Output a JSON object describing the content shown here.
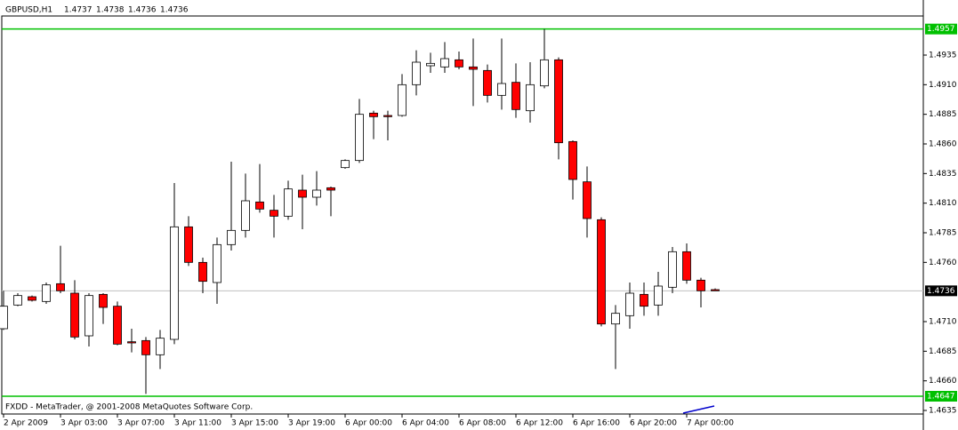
{
  "chart_data": {
    "type": "candlestick",
    "symbol": "GBPUSD,H1",
    "footer": "FXDD - MetaTrader, @ 2001-2008 MetaQuotes Software Corp.",
    "categories": [
      "2 Apr 2009",
      null,
      null,
      null,
      "3 Apr 03:00",
      null,
      null,
      null,
      "3 Apr 07:00",
      null,
      null,
      null,
      "3 Apr 11:00",
      null,
      null,
      null,
      "3 Apr 15:00",
      null,
      null,
      null,
      "3 Apr 19:00",
      null,
      null,
      null,
      "6 Apr 00:00",
      null,
      null,
      null,
      "6 Apr 04:00",
      null,
      null,
      null,
      "6 Apr 08:00",
      null,
      null,
      null,
      "6 Apr 12:00",
      null,
      null,
      null,
      "6 Apr 16:00",
      null,
      null,
      null,
      "6 Apr 20:00",
      null,
      null,
      null,
      "7 Apr 00:00",
      null,
      null
    ],
    "open": [
      1.4704,
      1.4724,
      1.4731,
      1.4727,
      1.4742,
      1.4734,
      1.4698,
      1.4733,
      1.4723,
      1.4693,
      1.4694,
      1.4682,
      1.4695,
      1.479,
      1.476,
      1.4743,
      1.4775,
      1.4787,
      1.4811,
      1.4804,
      1.4799,
      1.4821,
      1.4815,
      1.4823,
      1.484,
      1.4846,
      1.4886,
      1.4884,
      1.4884,
      1.491,
      1.4926,
      1.4925,
      1.4931,
      1.4925,
      1.4922,
      1.4901,
      1.4912,
      1.4888,
      1.4909,
      1.4931,
      1.4862,
      1.4828,
      1.4796,
      1.4708,
      1.4715,
      1.4733,
      1.4724,
      1.4739,
      1.4769,
      1.4745,
      1.4737
    ],
    "high": [
      1.4736,
      1.4734,
      1.4732,
      1.4743,
      1.4774,
      1.4745,
      1.4734,
      1.4734,
      1.4727,
      1.4704,
      1.4697,
      1.4703,
      1.4827,
      1.4799,
      1.4764,
      1.4781,
      1.4845,
      1.4835,
      1.4843,
      1.4817,
      1.4829,
      1.4834,
      1.4837,
      1.4824,
      1.4847,
      1.4898,
      1.4888,
      1.4888,
      1.4919,
      1.4939,
      1.4937,
      1.4946,
      1.4938,
      1.4949,
      1.4927,
      1.4949,
      1.4928,
      1.4929,
      1.4957,
      1.4933,
      1.4863,
      1.4841,
      1.4798,
      1.4724,
      1.4743,
      1.4743,
      1.4752,
      1.4773,
      1.4776,
      1.4747,
      1.4738
    ],
    "low": [
      1.4703,
      1.4723,
      1.4727,
      1.4725,
      1.4734,
      1.4695,
      1.4689,
      1.4708,
      1.469,
      1.4684,
      1.4649,
      1.467,
      1.4691,
      1.4757,
      1.4734,
      1.4725,
      1.477,
      1.4781,
      1.4802,
      1.4781,
      1.4796,
      1.4788,
      1.4808,
      1.4799,
      1.4839,
      1.4844,
      1.4864,
      1.4863,
      1.4883,
      1.4901,
      1.492,
      1.492,
      1.4923,
      1.4892,
      1.4895,
      1.4889,
      1.4882,
      1.4878,
      1.4907,
      1.4847,
      1.4813,
      1.4781,
      1.4706,
      1.467,
      1.4704,
      1.4715,
      1.4715,
      1.4734,
      1.4742,
      1.4722,
      1.4736
    ],
    "close": [
      1.4723,
      1.4732,
      1.4728,
      1.4741,
      1.4736,
      1.4697,
      1.4732,
      1.4722,
      1.4691,
      1.4692,
      1.4682,
      1.4696,
      1.479,
      1.476,
      1.4744,
      1.4775,
      1.4787,
      1.4812,
      1.4805,
      1.4799,
      1.4822,
      1.4815,
      1.4821,
      1.4821,
      1.4846,
      1.4885,
      1.4883,
      1.4883,
      1.491,
      1.4929,
      1.4928,
      1.4932,
      1.4925,
      1.4923,
      1.4901,
      1.4911,
      1.4889,
      1.491,
      1.4931,
      1.4861,
      1.483,
      1.4797,
      1.4708,
      1.4717,
      1.4734,
      1.4723,
      1.474,
      1.4769,
      1.4745,
      1.4736,
      1.4736
    ],
    "up_color": "#ffffff",
    "down_color": "#ff0000",
    "ylim": [
      1.4632,
      1.4968
    ],
    "yticks": [
      1.4635,
      {
        "value": 1.466,
        "label": "1.4660"
      },
      1.4685,
      {
        "value": 1.471,
        "label": "1.4710"
      },
      {
        "value": 1.476,
        "label": "1.4760"
      },
      1.4785,
      {
        "value": 1.481,
        "label": "1.4810"
      },
      1.4835,
      {
        "value": 1.486,
        "label": "1.4860"
      },
      1.4885,
      {
        "value": 1.491,
        "label": "1.4910"
      },
      1.4935
    ],
    "levels": [
      {
        "value": 1.4957,
        "color": "#00c000"
      },
      {
        "value": 1.4647,
        "color": "#00c000"
      }
    ]
  }
}
